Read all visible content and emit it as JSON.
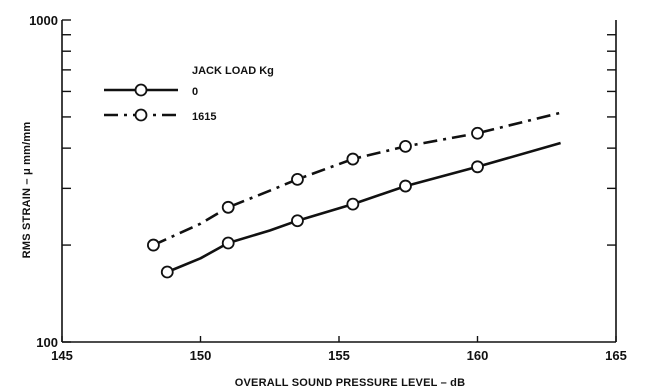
{
  "chart_data": {
    "type": "line",
    "title": "",
    "xlabel": "OVERALL SOUND PRESSURE LEVEL – dB",
    "ylabel": "RMS STRAIN – μ mm/mm",
    "xlim": [
      145,
      165
    ],
    "ylim": [
      100,
      1000
    ],
    "yscale": "log",
    "xticks": [
      145,
      150,
      155,
      160,
      165
    ],
    "xtick_labels": [
      "145",
      "150",
      "155",
      "160",
      "165"
    ],
    "yticks_labeled": [
      100,
      1000
    ],
    "ytick_labels": [
      "100",
      "1000"
    ],
    "grid": false,
    "legend": {
      "title": "JACK LOAD Kg",
      "placement": "top-left"
    },
    "series": [
      {
        "name": "0",
        "style": "solid",
        "color": "#111111",
        "marker": "open-circle",
        "x": [
          148.8,
          151.0,
          153.5,
          155.5,
          157.4,
          160.0
        ],
        "y": [
          165,
          203,
          238,
          268,
          305,
          350
        ],
        "line_x": [
          148.8,
          150.0,
          151.0,
          152.5,
          153.5,
          155.5,
          157.4,
          160.0,
          163.0
        ],
        "line_y": [
          165,
          182,
          203,
          222,
          238,
          268,
          305,
          350,
          415
        ]
      },
      {
        "name": "1615",
        "style": "dashdot",
        "color": "#111111",
        "marker": "open-circle",
        "x": [
          148.3,
          151.0,
          153.5,
          155.5,
          157.4,
          160.0
        ],
        "y": [
          200,
          262,
          320,
          370,
          405,
          445
        ],
        "line_x": [
          148.3,
          150.0,
          151.0,
          152.5,
          153.5,
          155.5,
          157.4,
          160.0,
          163.0
        ],
        "line_y": [
          200,
          233,
          262,
          295,
          320,
          370,
          405,
          445,
          515
        ]
      }
    ]
  }
}
